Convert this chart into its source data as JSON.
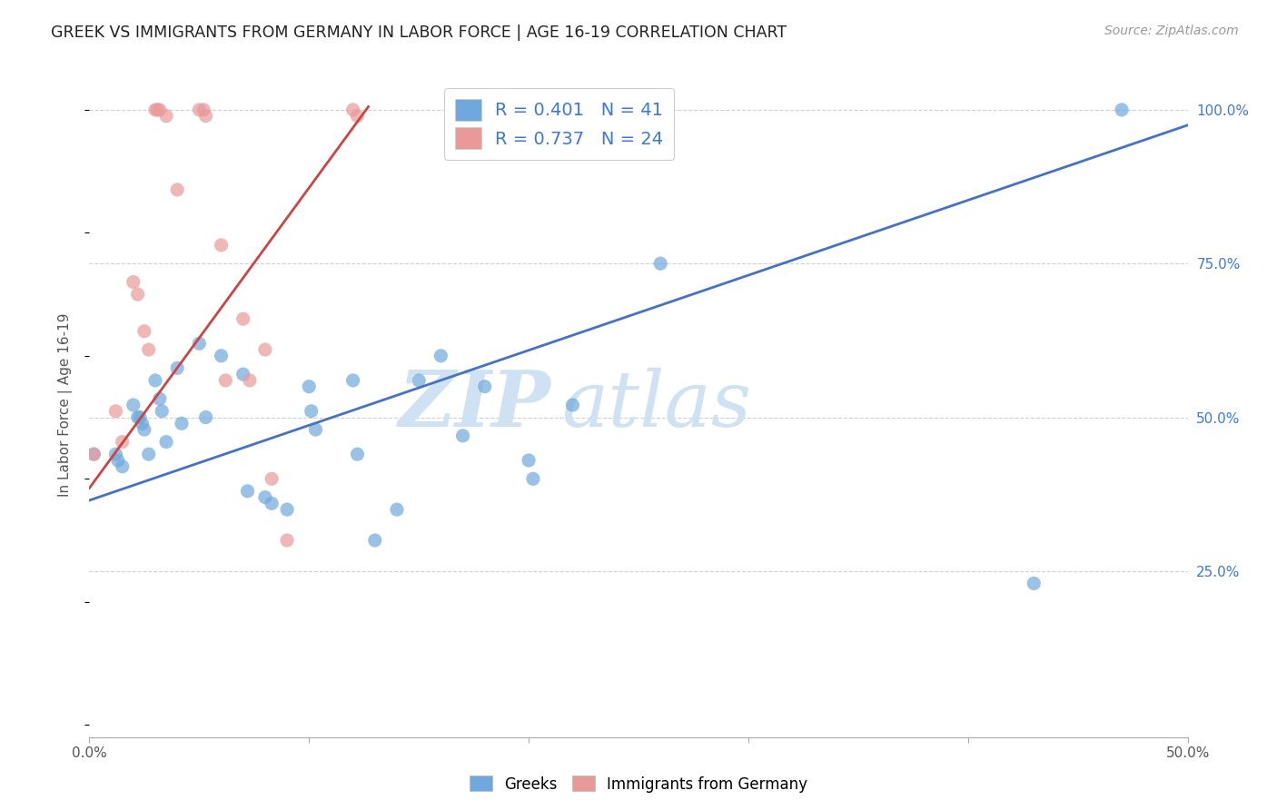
{
  "title": "GREEK VS IMMIGRANTS FROM GERMANY IN LABOR FORCE | AGE 16-19 CORRELATION CHART",
  "source": "Source: ZipAtlas.com",
  "ylabel": "In Labor Force | Age 16-19",
  "xlim": [
    0.0,
    0.5
  ],
  "ylim": [
    -0.02,
    1.06
  ],
  "blue_color": "#6fa8dc",
  "pink_color": "#ea9999",
  "line_blue": "#4472c4",
  "line_pink": "#cc4444",
  "R_blue": 0.401,
  "N_blue": 41,
  "R_pink": 0.737,
  "N_pink": 24,
  "legend_text_color": "#3c78d8",
  "watermark_zip": "ZIP",
  "watermark_atlas": "atlas",
  "watermark_color": "#cfe2f3",
  "blues_x": [
    0.002,
    0.012,
    0.013,
    0.015,
    0.02,
    0.022,
    0.023,
    0.024,
    0.025,
    0.027,
    0.03,
    0.032,
    0.033,
    0.035,
    0.04,
    0.042,
    0.05,
    0.053,
    0.06,
    0.07,
    0.072,
    0.08,
    0.083,
    0.09,
    0.1,
    0.101,
    0.103,
    0.12,
    0.122,
    0.13,
    0.14,
    0.15,
    0.16,
    0.17,
    0.18,
    0.2,
    0.202,
    0.22,
    0.26,
    0.43,
    0.47
  ],
  "blues_y": [
    0.44,
    0.44,
    0.43,
    0.42,
    0.52,
    0.5,
    0.5,
    0.49,
    0.48,
    0.44,
    0.56,
    0.53,
    0.51,
    0.46,
    0.58,
    0.49,
    0.62,
    0.5,
    0.6,
    0.57,
    0.38,
    0.37,
    0.36,
    0.35,
    0.55,
    0.51,
    0.48,
    0.56,
    0.44,
    0.3,
    0.35,
    0.56,
    0.6,
    0.47,
    0.55,
    0.43,
    0.4,
    0.52,
    0.75,
    0.23,
    1.0
  ],
  "pinks_x": [
    0.002,
    0.012,
    0.015,
    0.02,
    0.022,
    0.025,
    0.027,
    0.03,
    0.031,
    0.032,
    0.035,
    0.04,
    0.05,
    0.052,
    0.053,
    0.06,
    0.062,
    0.07,
    0.073,
    0.08,
    0.083,
    0.09,
    0.12,
    0.122
  ],
  "pinks_y": [
    0.44,
    0.51,
    0.46,
    0.72,
    0.7,
    0.64,
    0.61,
    1.0,
    1.0,
    1.0,
    0.99,
    0.87,
    1.0,
    1.0,
    0.99,
    0.78,
    0.56,
    0.66,
    0.56,
    0.61,
    0.4,
    0.3,
    1.0,
    0.99
  ],
  "blue_line_x": [
    0.0,
    0.5
  ],
  "blue_line_y": [
    0.365,
    0.975
  ],
  "pink_line_x": [
    0.0,
    0.127
  ],
  "pink_line_y": [
    0.385,
    1.005
  ],
  "background_color": "#ffffff",
  "grid_color": "#d0d0d0",
  "yticks": [
    0.25,
    0.5,
    0.75,
    1.0
  ],
  "ytick_labels": [
    "25.0%",
    "50.0%",
    "75.0%",
    "100.0%"
  ],
  "xtick_positions": [
    0.0,
    0.1,
    0.2,
    0.3,
    0.4,
    0.5
  ],
  "xtick_labels": [
    "0.0%",
    "",
    "",
    "",
    "",
    "50.0%"
  ]
}
